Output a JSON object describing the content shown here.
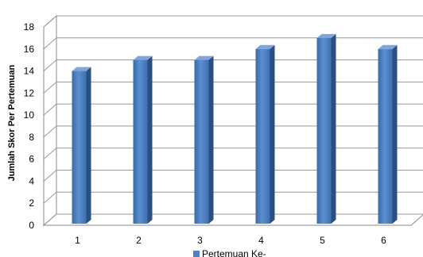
{
  "chart_data": {
    "type": "bar",
    "title": "",
    "xlabel": "",
    "ylabel": "Jumlah Skor Per Pertemuan",
    "categories": [
      "1",
      "2",
      "3",
      "4",
      "5",
      "6"
    ],
    "series": [
      {
        "name": "Pertemuan Ke-",
        "values": [
          14,
          15,
          15,
          16,
          17,
          16
        ],
        "color": "#4F81BD"
      }
    ],
    "ylim": [
      0,
      18
    ],
    "yticks": [
      0,
      2,
      4,
      6,
      8,
      10,
      12,
      14,
      16,
      18
    ],
    "grid": true,
    "legend_position": "bottom"
  }
}
